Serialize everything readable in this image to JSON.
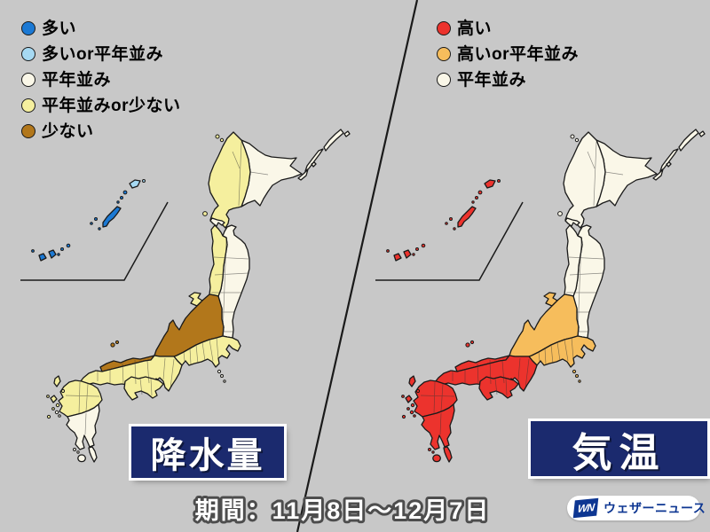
{
  "background_color": "#c8c8c8",
  "palette": {
    "much": "#1b79d4",
    "much_or_normal": "#a6d9f2",
    "normal": "#faf7e8",
    "normal_or_less": "#f5ef9e",
    "less": "#b2771b",
    "high": "#ec332d",
    "high_or_normal": "#f6bd5c"
  },
  "label_box_color": "#1b2a6e",
  "maps": {
    "precipitation": {
      "label": "降水量",
      "legend": [
        {
          "key": "much",
          "label": "多い"
        },
        {
          "key": "much_or_normal",
          "label": "多いor平年並み"
        },
        {
          "key": "normal",
          "label": "平年並み"
        },
        {
          "key": "normal_or_less",
          "label": "平年並みor少ない"
        },
        {
          "key": "less",
          "label": "少ない"
        }
      ],
      "regions": {
        "hokkaido_west": "normal_or_less",
        "hokkaido_east": "normal",
        "oshima_tip": "normal",
        "kurils": "normal",
        "rishiri": "normal_or_less",
        "okushiri": "normal_or_less",
        "tohoku_west": "normal_or_less",
        "tohoku_east": "normal",
        "sado": "normal_or_less",
        "hokuriku": "less",
        "sanin": "less",
        "oki": "less",
        "central": "normal_or_less",
        "izu_islands": "normal",
        "kinki_chugoku": "normal_or_less",
        "awaji": "normal_or_less",
        "shikoku": "normal_or_less",
        "tsushima": "normal_or_less",
        "iki": "normal_or_less",
        "goto": "normal_or_less",
        "danjo": "normal_or_less",
        "koshiki": "normal",
        "kyushu_north": "normal_or_less",
        "kyushu_south": "normal",
        "osumi_islands": "normal",
        "amami_north": "much_or_normal",
        "amami_north_dot": "much_or_normal",
        "amami_south": "much",
        "okinawa_main": "much",
        "okinawa_dots": "much",
        "sakishima": "much"
      }
    },
    "temperature": {
      "label": "気温",
      "legend": [
        {
          "key": "high",
          "label": "高い"
        },
        {
          "key": "high_or_normal",
          "label": "高いor平年並み"
        },
        {
          "key": "normal",
          "label": "平年並み"
        }
      ],
      "regions": {
        "hokkaido_west": "normal",
        "hokkaido_east": "normal",
        "oshima_tip": "normal",
        "kurils": "normal",
        "rishiri": "normal",
        "okushiri": "normal",
        "tohoku_west": "normal",
        "tohoku_east": "normal",
        "sado": "high_or_normal",
        "hokuriku": "high_or_normal",
        "sanin": "high",
        "oki": "high",
        "central": "high_or_normal",
        "izu_islands": "high_or_normal",
        "kinki_chugoku": "high",
        "awaji": "high",
        "shikoku": "high",
        "tsushima": "high",
        "iki": "high",
        "goto": "high",
        "danjo": "high",
        "koshiki": "high",
        "kyushu_north": "high",
        "kyushu_south": "high",
        "osumi_islands": "high",
        "amami_north": "high",
        "amami_north_dot": "high",
        "amami_south": "high",
        "okinawa_main": "high",
        "okinawa_dots": "high",
        "sakishima": "high"
      }
    }
  },
  "footer": {
    "period": "期間：11月8日〜12月7日"
  },
  "logo": {
    "mark": "WN",
    "text": "ウェザーニュース",
    "color": "#0d3692"
  }
}
